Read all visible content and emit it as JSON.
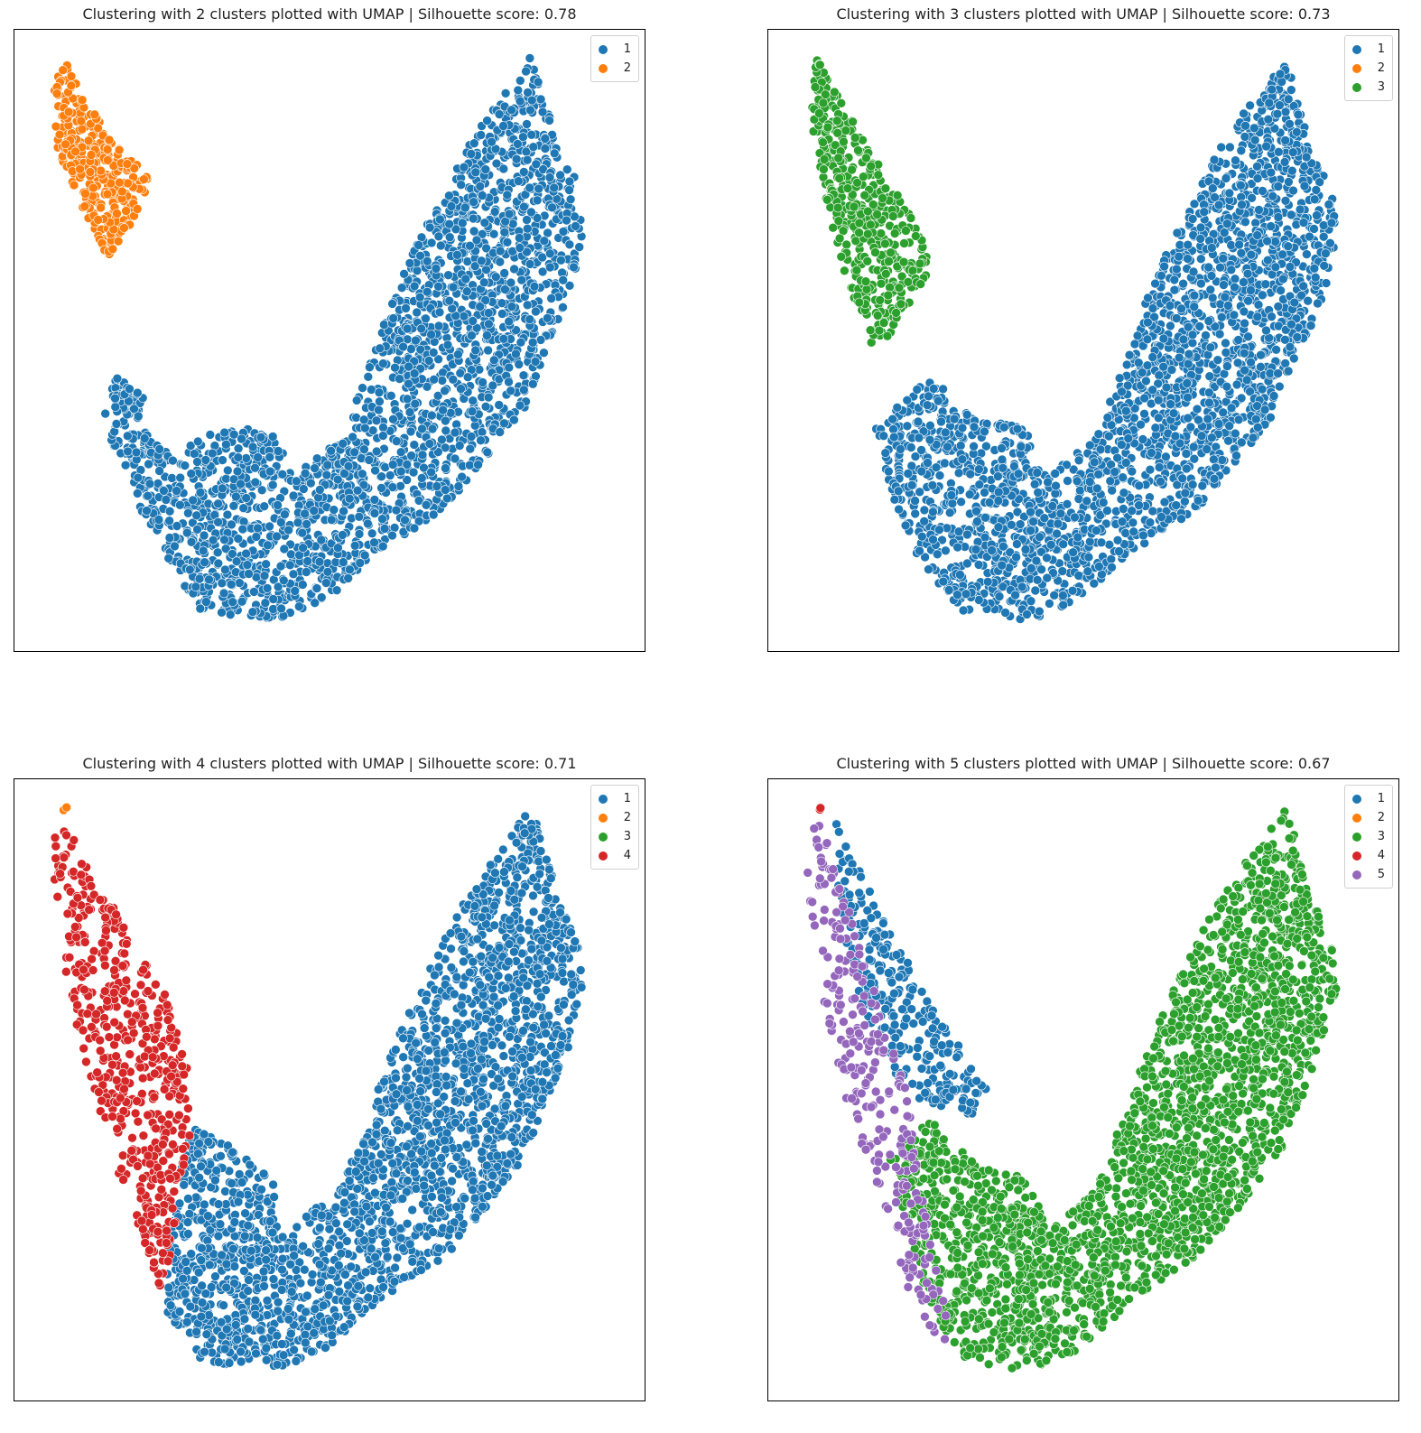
{
  "chart_data": [
    {
      "type": "scatter",
      "title": "Clustering with 2 clusters plotted with UMAP | Silhouette score: 0.78",
      "legend_position": "top-right",
      "grid": false,
      "series": [
        {
          "name": "1",
          "color": "#1f77b4",
          "regions": [
            {
              "poly": [
                [
                  0.1,
                  0.62
                ],
                [
                  0.18,
                  0.66
                ],
                [
                  0.24,
                  0.72
                ],
                [
                  0.28,
                  0.66
                ],
                [
                  0.4,
                  0.66
                ],
                [
                  0.44,
                  0.74
                ],
                [
                  0.52,
                  0.68
                ],
                [
                  0.56,
                  0.58
                ],
                [
                  0.6,
                  0.46
                ],
                [
                  0.64,
                  0.36
                ],
                [
                  0.7,
                  0.24
                ],
                [
                  0.74,
                  0.16
                ],
                [
                  0.78,
                  0.1
                ],
                [
                  0.82,
                  0.05
                ],
                [
                  0.85,
                  0.0
                ],
                [
                  0.88,
                  0.1
                ],
                [
                  0.9,
                  0.18
                ],
                [
                  0.93,
                  0.22
                ],
                [
                  0.94,
                  0.32
                ],
                [
                  0.92,
                  0.42
                ],
                [
                  0.87,
                  0.54
                ],
                [
                  0.84,
                  0.62
                ],
                [
                  0.78,
                  0.7
                ],
                [
                  0.7,
                  0.8
                ],
                [
                  0.58,
                  0.88
                ],
                [
                  0.5,
                  0.96
                ],
                [
                  0.4,
                  1.0
                ],
                [
                  0.28,
                  0.98
                ],
                [
                  0.2,
                  0.86
                ],
                [
                  0.14,
                  0.72
                ]
              ],
              "n": 2300
            },
            {
              "poly": [
                [
                  0.12,
                  0.56
                ],
                [
                  0.18,
                  0.6
                ],
                [
                  0.17,
                  0.64
                ],
                [
                  0.13,
                  0.63
                ]
              ],
              "n": 60
            }
          ]
        },
        {
          "name": "2",
          "color": "#ff7f0e",
          "regions": [
            {
              "poly": [
                [
                  0.04,
                  0.0
                ],
                [
                  0.08,
                  0.08
                ],
                [
                  0.14,
                  0.16
                ],
                [
                  0.19,
                  0.22
                ],
                [
                  0.16,
                  0.3
                ],
                [
                  0.12,
                  0.36
                ],
                [
                  0.1,
                  0.32
                ],
                [
                  0.06,
                  0.24
                ],
                [
                  0.03,
                  0.16
                ],
                [
                  0.02,
                  0.08
                ]
              ],
              "n": 320
            }
          ]
        }
      ]
    },
    {
      "type": "scatter",
      "title": "Clustering with 3 clusters plotted with UMAP | Silhouette score: 0.73",
      "legend_position": "top-right",
      "grid": false,
      "series": [
        {
          "name": "1",
          "color": "#1f77b4",
          "regions": [
            {
              "poly": [
                [
                  0.14,
                  0.66
                ],
                [
                  0.24,
                  0.56
                ],
                [
                  0.28,
                  0.62
                ],
                [
                  0.4,
                  0.66
                ],
                [
                  0.44,
                  0.74
                ],
                [
                  0.52,
                  0.68
                ],
                [
                  0.56,
                  0.58
                ],
                [
                  0.6,
                  0.46
                ],
                [
                  0.64,
                  0.36
                ],
                [
                  0.7,
                  0.24
                ],
                [
                  0.74,
                  0.16
                ],
                [
                  0.78,
                  0.1
                ],
                [
                  0.82,
                  0.05
                ],
                [
                  0.85,
                  0.0
                ],
                [
                  0.88,
                  0.1
                ],
                [
                  0.9,
                  0.18
                ],
                [
                  0.93,
                  0.22
                ],
                [
                  0.94,
                  0.32
                ],
                [
                  0.92,
                  0.42
                ],
                [
                  0.87,
                  0.54
                ],
                [
                  0.84,
                  0.62
                ],
                [
                  0.78,
                  0.7
                ],
                [
                  0.7,
                  0.8
                ],
                [
                  0.58,
                  0.88
                ],
                [
                  0.5,
                  0.96
                ],
                [
                  0.4,
                  1.0
                ],
                [
                  0.28,
                  0.98
                ],
                [
                  0.2,
                  0.86
                ],
                [
                  0.16,
                  0.74
                ]
              ],
              "n": 2350
            }
          ]
        },
        {
          "name": "2",
          "color": "#ff7f0e",
          "regions": []
        },
        {
          "name": "3",
          "color": "#2ca02c",
          "regions": [
            {
              "poly": [
                [
                  0.04,
                  0.0
                ],
                [
                  0.08,
                  0.08
                ],
                [
                  0.14,
                  0.18
                ],
                [
                  0.2,
                  0.28
                ],
                [
                  0.24,
                  0.36
                ],
                [
                  0.22,
                  0.44
                ],
                [
                  0.18,
                  0.48
                ],
                [
                  0.14,
                  0.52
                ],
                [
                  0.12,
                  0.48
                ],
                [
                  0.08,
                  0.36
                ],
                [
                  0.05,
                  0.24
                ],
                [
                  0.03,
                  0.12
                ]
              ],
              "n": 420
            }
          ]
        }
      ]
    },
    {
      "type": "scatter",
      "title": "Clustering with 4 clusters plotted with UMAP | Silhouette score: 0.71",
      "legend_position": "top-right",
      "grid": false,
      "series": [
        {
          "name": "1",
          "color": "#1f77b4",
          "regions": [
            {
              "poly": [
                [
                  0.26,
                  0.56
                ],
                [
                  0.3,
                  0.58
                ],
                [
                  0.4,
                  0.66
                ],
                [
                  0.44,
                  0.74
                ],
                [
                  0.52,
                  0.68
                ],
                [
                  0.56,
                  0.58
                ],
                [
                  0.6,
                  0.46
                ],
                [
                  0.64,
                  0.36
                ],
                [
                  0.7,
                  0.24
                ],
                [
                  0.74,
                  0.16
                ],
                [
                  0.78,
                  0.1
                ],
                [
                  0.82,
                  0.05
                ],
                [
                  0.85,
                  0.0
                ],
                [
                  0.88,
                  0.1
                ],
                [
                  0.9,
                  0.18
                ],
                [
                  0.93,
                  0.22
                ],
                [
                  0.94,
                  0.32
                ],
                [
                  0.92,
                  0.42
                ],
                [
                  0.87,
                  0.54
                ],
                [
                  0.84,
                  0.62
                ],
                [
                  0.78,
                  0.7
                ],
                [
                  0.7,
                  0.8
                ],
                [
                  0.58,
                  0.88
                ],
                [
                  0.5,
                  0.96
                ],
                [
                  0.4,
                  1.0
                ],
                [
                  0.28,
                  0.98
                ],
                [
                  0.22,
                  0.9
                ],
                [
                  0.22,
                  0.76
                ]
              ],
              "n": 2300
            }
          ]
        },
        {
          "name": "2",
          "color": "#ff7f0e",
          "regions": [
            {
              "poly": [
                [
                  0.04,
                  0.0
                ],
                [
                  0.05,
                  0.0
                ],
                [
                  0.05,
                  0.01
                ],
                [
                  0.04,
                  0.01
                ]
              ],
              "n": 2
            }
          ]
        },
        {
          "name": "3",
          "color": "#2ca02c",
          "regions": []
        },
        {
          "name": "4",
          "color": "#d62728",
          "regions": [
            {
              "poly": [
                [
                  0.04,
                  0.0
                ],
                [
                  0.08,
                  0.1
                ],
                [
                  0.14,
                  0.2
                ],
                [
                  0.22,
                  0.34
                ],
                [
                  0.26,
                  0.46
                ],
                [
                  0.26,
                  0.58
                ],
                [
                  0.24,
                  0.7
                ],
                [
                  0.22,
                  0.84
                ],
                [
                  0.2,
                  0.86
                ],
                [
                  0.18,
                  0.78
                ],
                [
                  0.14,
                  0.66
                ],
                [
                  0.1,
                  0.54
                ],
                [
                  0.06,
                  0.38
                ],
                [
                  0.03,
                  0.2
                ],
                [
                  0.02,
                  0.08
                ]
              ],
              "n": 520
            }
          ]
        }
      ]
    },
    {
      "type": "scatter",
      "title": "Clustering with 5 clusters plotted with UMAP | Silhouette score: 0.67",
      "legend_position": "top-right",
      "grid": false,
      "series": [
        {
          "name": "1",
          "color": "#1f77b4",
          "regions": [
            {
              "poly": [
                [
                  0.06,
                  0.0
                ],
                [
                  0.12,
                  0.12
                ],
                [
                  0.18,
                  0.24
                ],
                [
                  0.24,
                  0.36
                ],
                [
                  0.3,
                  0.44
                ],
                [
                  0.34,
                  0.5
                ],
                [
                  0.3,
                  0.56
                ],
                [
                  0.24,
                  0.54
                ],
                [
                  0.18,
                  0.48
                ],
                [
                  0.12,
                  0.36
                ],
                [
                  0.08,
                  0.2
                ]
              ],
              "n": 260
            }
          ]
        },
        {
          "name": "2",
          "color": "#ff7f0e",
          "regions": []
        },
        {
          "name": "3",
          "color": "#2ca02c",
          "regions": [
            {
              "poly": [
                [
                  0.16,
                  0.6
                ],
                [
                  0.24,
                  0.56
                ],
                [
                  0.3,
                  0.62
                ],
                [
                  0.4,
                  0.66
                ],
                [
                  0.44,
                  0.74
                ],
                [
                  0.52,
                  0.68
                ],
                [
                  0.56,
                  0.58
                ],
                [
                  0.6,
                  0.46
                ],
                [
                  0.64,
                  0.36
                ],
                [
                  0.7,
                  0.24
                ],
                [
                  0.74,
                  0.16
                ],
                [
                  0.78,
                  0.1
                ],
                [
                  0.82,
                  0.05
                ],
                [
                  0.85,
                  0.0
                ],
                [
                  0.88,
                  0.1
                ],
                [
                  0.9,
                  0.18
                ],
                [
                  0.93,
                  0.22
                ],
                [
                  0.94,
                  0.32
                ],
                [
                  0.92,
                  0.42
                ],
                [
                  0.87,
                  0.54
                ],
                [
                  0.84,
                  0.62
                ],
                [
                  0.78,
                  0.7
                ],
                [
                  0.7,
                  0.8
                ],
                [
                  0.58,
                  0.88
                ],
                [
                  0.5,
                  0.96
                ],
                [
                  0.4,
                  1.0
                ],
                [
                  0.3,
                  0.98
                ],
                [
                  0.24,
                  0.9
                ],
                [
                  0.2,
                  0.76
                ]
              ],
              "n": 2300
            }
          ]
        },
        {
          "name": "4",
          "color": "#d62728",
          "regions": [
            {
              "poly": [
                [
                  0.04,
                  0.0
                ],
                [
                  0.05,
                  0.0
                ],
                [
                  0.05,
                  0.01
                ],
                [
                  0.04,
                  0.01
                ]
              ],
              "n": 2
            }
          ]
        },
        {
          "name": "5",
          "color": "#9467bd",
          "regions": [
            {
              "poly": [
                [
                  0.04,
                  0.0
                ],
                [
                  0.08,
                  0.14
                ],
                [
                  0.12,
                  0.26
                ],
                [
                  0.16,
                  0.4
                ],
                [
                  0.2,
                  0.52
                ],
                [
                  0.22,
                  0.66
                ],
                [
                  0.24,
                  0.8
                ],
                [
                  0.28,
                  0.92
                ],
                [
                  0.26,
                  0.96
                ],
                [
                  0.2,
                  0.86
                ],
                [
                  0.16,
                  0.74
                ],
                [
                  0.12,
                  0.62
                ],
                [
                  0.08,
                  0.48
                ],
                [
                  0.04,
                  0.3
                ],
                [
                  0.02,
                  0.14
                ]
              ],
              "n": 260
            }
          ]
        }
      ]
    }
  ]
}
